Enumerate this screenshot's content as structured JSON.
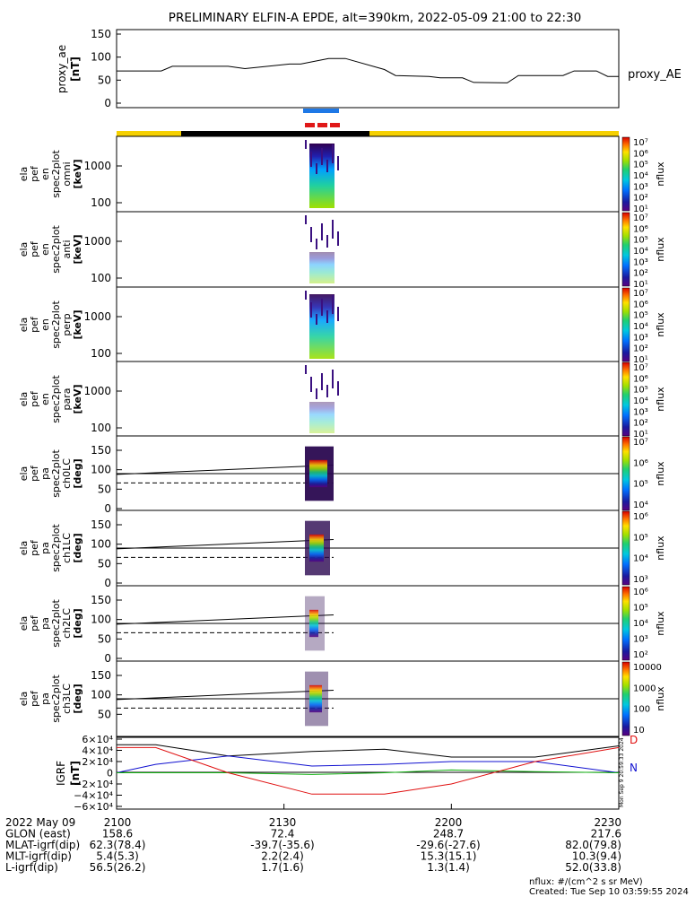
{
  "title": "PRELIMINARY ELFIN-A EPDE, alt=390km, 2022-05-09 21:00 to 22:30",
  "ae_panel": {
    "ylabel_lines": [
      "proxy_ae",
      "[nT]"
    ],
    "yticks": [
      "150",
      "100",
      "50",
      "0"
    ],
    "series_label": "proxy_AE",
    "chart_data": {
      "type": "line",
      "title": "",
      "ylim": [
        0,
        150
      ],
      "x_minutes": [
        0,
        8,
        10,
        20,
        23,
        31,
        33,
        38,
        41,
        48,
        50,
        56,
        58,
        62,
        64,
        70,
        72,
        80,
        82,
        86,
        88,
        90
      ],
      "values": [
        70,
        70,
        80,
        80,
        75,
        85,
        85,
        97,
        97,
        73,
        60,
        58,
        55,
        55,
        45,
        44,
        60,
        60,
        70,
        70,
        58,
        58
      ]
    }
  },
  "spec_panels": [
    {
      "ylabel_lines": [
        "ela",
        "pef",
        "en",
        "spec2plot",
        "omni",
        "[keV]"
      ],
      "yticks": [
        "1000",
        "100"
      ],
      "cbar_label": "nflux",
      "cbar_ticks": [
        "10⁷",
        "10⁶",
        "10⁵",
        "10⁴",
        "10³",
        "10²",
        "10¹"
      ]
    },
    {
      "ylabel_lines": [
        "ela",
        "pef",
        "en",
        "spec2plot",
        "anti",
        "[keV]"
      ],
      "yticks": [
        "1000",
        "100"
      ],
      "cbar_label": "nflux",
      "cbar_ticks": [
        "10⁷",
        "10⁶",
        "10⁵",
        "10⁴",
        "10³",
        "10²",
        "10¹"
      ]
    },
    {
      "ylabel_lines": [
        "ela",
        "pef",
        "en",
        "spec2plot",
        "perp",
        "[keV]"
      ],
      "yticks": [
        "1000",
        "100"
      ],
      "cbar_label": "nflux",
      "cbar_ticks": [
        "10⁷",
        "10⁶",
        "10⁵",
        "10⁴",
        "10³",
        "10²",
        "10¹"
      ]
    },
    {
      "ylabel_lines": [
        "ela",
        "pef",
        "en",
        "spec2plot",
        "para",
        "[keV]"
      ],
      "yticks": [
        "1000",
        "100"
      ],
      "cbar_label": "nflux",
      "cbar_ticks": [
        "10⁷",
        "10⁶",
        "10⁵",
        "10⁴",
        "10³",
        "10²",
        "10¹"
      ]
    }
  ],
  "pa_panels": [
    {
      "ylabel_lines": [
        "ela",
        "pef",
        "pa",
        "spec2plot",
        "ch0LC",
        "[deg]"
      ],
      "yticks": [
        "150",
        "100",
        "50",
        "0"
      ],
      "cbar_label": "nflux",
      "cbar_ticks": [
        "10⁷",
        "10⁶",
        "10⁵",
        "10⁴"
      ]
    },
    {
      "ylabel_lines": [
        "ela",
        "pef",
        "pa",
        "spec2plot",
        "ch1LC",
        "[deg]"
      ],
      "yticks": [
        "150",
        "100",
        "50",
        "0"
      ],
      "cbar_label": "nflux",
      "cbar_ticks": [
        "10⁶",
        "10⁵",
        "10⁴",
        "10³"
      ]
    },
    {
      "ylabel_lines": [
        "ela",
        "pef",
        "pa",
        "spec2plot",
        "ch2LC",
        "[deg]"
      ],
      "yticks": [
        "150",
        "100",
        "50",
        "0"
      ],
      "cbar_label": "nflux",
      "cbar_ticks": [
        "10⁶",
        "10⁵",
        "10⁴",
        "10³",
        "10²"
      ]
    },
    {
      "ylabel_lines": [
        "ela",
        "pef",
        "pa",
        "spec2plot",
        "ch3LC",
        "[deg]"
      ],
      "yticks": [
        "150",
        "100",
        "50"
      ],
      "cbar_label": "nflux",
      "cbar_ticks": [
        "10000",
        "1000",
        "100",
        "10"
      ]
    }
  ],
  "igrf_panel": {
    "ylabel_lines": [
      "IGRF",
      "[nT]"
    ],
    "yticks": [
      "6×10⁴",
      "4×10⁴",
      "2×10⁴",
      "0",
      "−2×10⁴",
      "−4×10⁴",
      "−6×10⁴"
    ],
    "legend": [
      "D",
      "N"
    ],
    "side_text": "Mon Sep 9 20:59:33 2024",
    "chart_data": {
      "type": "line",
      "title": "",
      "ylim": [
        -60000,
        60000
      ],
      "x_minutes": [
        0,
        7,
        20,
        35,
        48,
        60,
        75,
        90
      ],
      "series": [
        {
          "color": "#000000",
          "values": [
            50000,
            50000,
            30000,
            38000,
            42000,
            28000,
            28000,
            48000
          ]
        },
        {
          "color": "#1010d0",
          "values": [
            0,
            15000,
            30000,
            12000,
            15000,
            20000,
            20000,
            0
          ]
        },
        {
          "color": "#10b010",
          "values": [
            0,
            0,
            0,
            -3000,
            0,
            5000,
            2000,
            0
          ]
        },
        {
          "color": "#e01010",
          "values": [
            45000,
            45000,
            0,
            -38000,
            -38000,
            -20000,
            20000,
            45000
          ]
        }
      ]
    }
  },
  "x_tick_labels": [
    "2100",
    "2130",
    "2200",
    "2230"
  ],
  "info_rows": [
    {
      "label": "2022 May 09",
      "values": [
        "2100",
        "2130",
        "2200",
        "2230"
      ]
    },
    {
      "label": "GLON (east)",
      "values": [
        "158.6",
        "72.4",
        "248.7",
        "217.6"
      ]
    },
    {
      "label": "MLAT-igrf(dip)",
      "values": [
        "62.3(78.4)",
        "-39.7(-35.6)",
        "-29.6(-27.6)",
        "82.0(79.8)"
      ]
    },
    {
      "label": "MLT-igrf(dip)",
      "values": [
        "5.4(5.3)",
        "2.2(2.4)",
        "15.3(15.1)",
        "10.3(9.4)"
      ]
    },
    {
      "label": "L-igrf(dip)",
      "values": [
        "56.5(26.2)",
        "1.7(1.6)",
        "1.3(1.4)",
        "52.0(33.8)"
      ]
    }
  ],
  "footer": {
    "units": "nflux: #/(cm^2 s sr MeV)",
    "created": "Created: Tue Sep 10 03:59:55 2024"
  },
  "colors": {
    "sunlight_bar": "#f5d000",
    "shadow_bar": "#000000",
    "science_zone_blue": "#1e78e6",
    "science_zone_red": "#e01818"
  }
}
